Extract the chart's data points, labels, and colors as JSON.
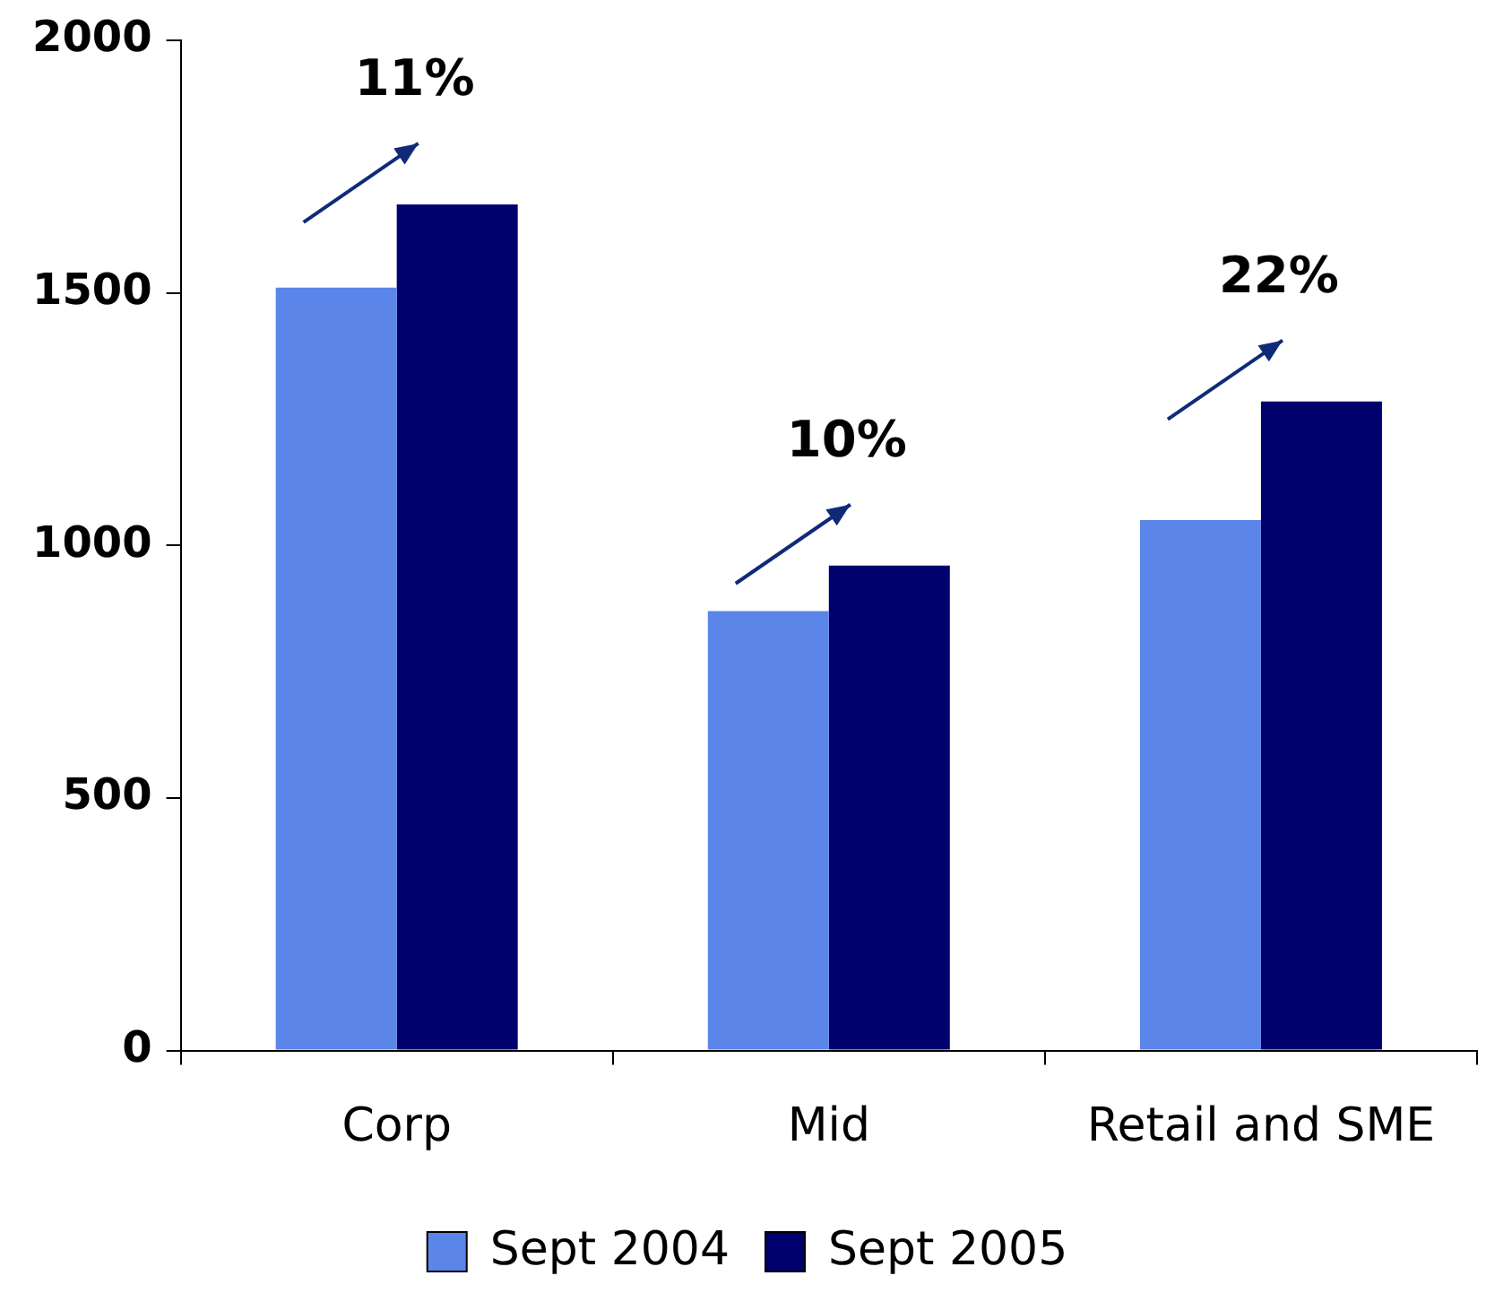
{
  "chart_data": {
    "type": "bar",
    "categories": [
      "Corp",
      "Mid",
      "Retail and SME"
    ],
    "series": [
      {
        "name": "Sept 2004",
        "color": "#5b85e8",
        "values": [
          1510,
          870,
          1050
        ]
      },
      {
        "name": "Sept 2005",
        "color": "#00006e",
        "values": [
          1675,
          960,
          1285
        ]
      }
    ],
    "ylim": [
      0,
      2000
    ],
    "yticks": [
      0,
      500,
      1000,
      1500,
      2000
    ],
    "grid": false,
    "legend": "bottom",
    "annotations": [
      "11%",
      "10%",
      "22%"
    ]
  }
}
